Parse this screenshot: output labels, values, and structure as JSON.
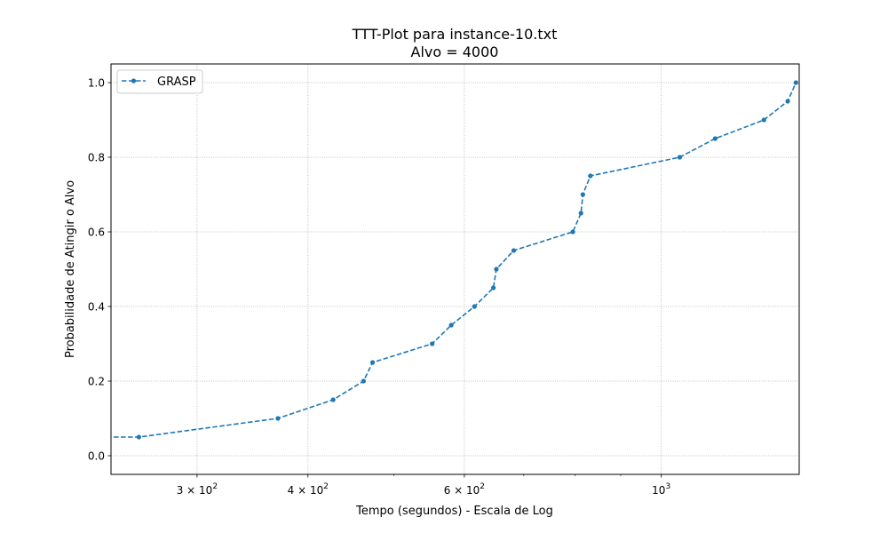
{
  "chart_data": {
    "type": "line",
    "title": "TTT-Plot para instance-10.txt",
    "subtitle": "Alvo = 4000",
    "xlabel": "Tempo (segundos) - Escala de Log",
    "ylabel": "Probabilidade de Atingir o Alvo",
    "xscale": "log",
    "xlim": [
      240,
      1430
    ],
    "ylim": [
      -0.05,
      1.05
    ],
    "grid": true,
    "legend_position": "upper-left",
    "x_ticks": [
      {
        "value": 300,
        "mantissa": "3",
        "base": "10",
        "exp": "2"
      },
      {
        "value": 400,
        "mantissa": "4",
        "base": "10",
        "exp": "2"
      },
      {
        "value": 600,
        "mantissa": "6",
        "base": "10",
        "exp": "2"
      },
      {
        "value": 1000,
        "mantissa": "",
        "base": "10",
        "exp": "3"
      }
    ],
    "y_ticks": [
      "0.0",
      "0.2",
      "0.4",
      "0.6",
      "0.8",
      "1.0"
    ],
    "series": [
      {
        "name": "GRASP",
        "color": "#1f77b4",
        "linestyle": "dashed",
        "marker": "circle",
        "x": [
          180,
          258,
          370,
          427,
          462,
          473,
          552,
          580,
          616,
          647,
          652,
          682,
          795,
          812,
          816,
          832,
          1049,
          1150,
          1305,
          1388,
          1418
        ],
        "y": [
          0.05,
          0.05,
          0.1,
          0.15,
          0.2,
          0.25,
          0.3,
          0.35,
          0.4,
          0.45,
          0.5,
          0.55,
          0.6,
          0.65,
          0.7,
          0.75,
          0.8,
          0.85,
          0.9,
          0.95,
          1.0
        ]
      }
    ]
  }
}
